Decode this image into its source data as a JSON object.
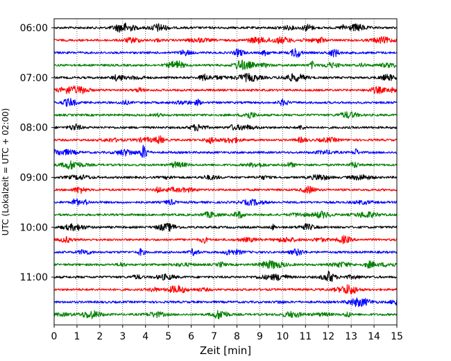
{
  "chart_data": {
    "type": "line",
    "title": "",
    "xlabel": "Zeit  [min]",
    "ylabel": "UTC (Lokalzeit = UTC + 02:00)",
    "xlim": [
      0,
      15
    ],
    "xticks": [
      "0",
      "1",
      "2",
      "3",
      "4",
      "5",
      "6",
      "7",
      "8",
      "9",
      "10",
      "11",
      "12",
      "13",
      "14",
      "15"
    ],
    "row_interval_minutes": 15,
    "start_time": "06:00",
    "ytick_labels": [
      "06:00",
      "07:00",
      "08:00",
      "09:00",
      "10:00",
      "11:00"
    ],
    "ytick_rows": [
      0,
      4,
      8,
      12,
      16,
      20
    ],
    "colors": [
      "#000000",
      "#ff0000",
      "#0000ff",
      "#008000"
    ],
    "vertical_grid": "dotted",
    "rows": [
      {
        "start": "06:00",
        "color": "#000000"
      },
      {
        "start": "06:15",
        "color": "#ff0000"
      },
      {
        "start": "06:30",
        "color": "#0000ff"
      },
      {
        "start": "06:45",
        "color": "#008000"
      },
      {
        "start": "07:00",
        "color": "#000000"
      },
      {
        "start": "07:15",
        "color": "#ff0000"
      },
      {
        "start": "07:30",
        "color": "#0000ff"
      },
      {
        "start": "07:45",
        "color": "#008000"
      },
      {
        "start": "08:00",
        "color": "#000000"
      },
      {
        "start": "08:15",
        "color": "#ff0000"
      },
      {
        "start": "08:30",
        "color": "#0000ff"
      },
      {
        "start": "08:45",
        "color": "#008000"
      },
      {
        "start": "09:00",
        "color": "#000000"
      },
      {
        "start": "09:15",
        "color": "#ff0000"
      },
      {
        "start": "09:30",
        "color": "#0000ff"
      },
      {
        "start": "09:45",
        "color": "#008000"
      },
      {
        "start": "10:00",
        "color": "#000000"
      },
      {
        "start": "10:15",
        "color": "#ff0000"
      },
      {
        "start": "10:30",
        "color": "#0000ff"
      },
      {
        "start": "10:45",
        "color": "#008000"
      },
      {
        "start": "11:00",
        "color": "#000000"
      },
      {
        "start": "11:15",
        "color": "#ff0000"
      },
      {
        "start": "11:30",
        "color": "#0000ff"
      },
      {
        "start": "11:45",
        "color": "#008000"
      }
    ]
  }
}
